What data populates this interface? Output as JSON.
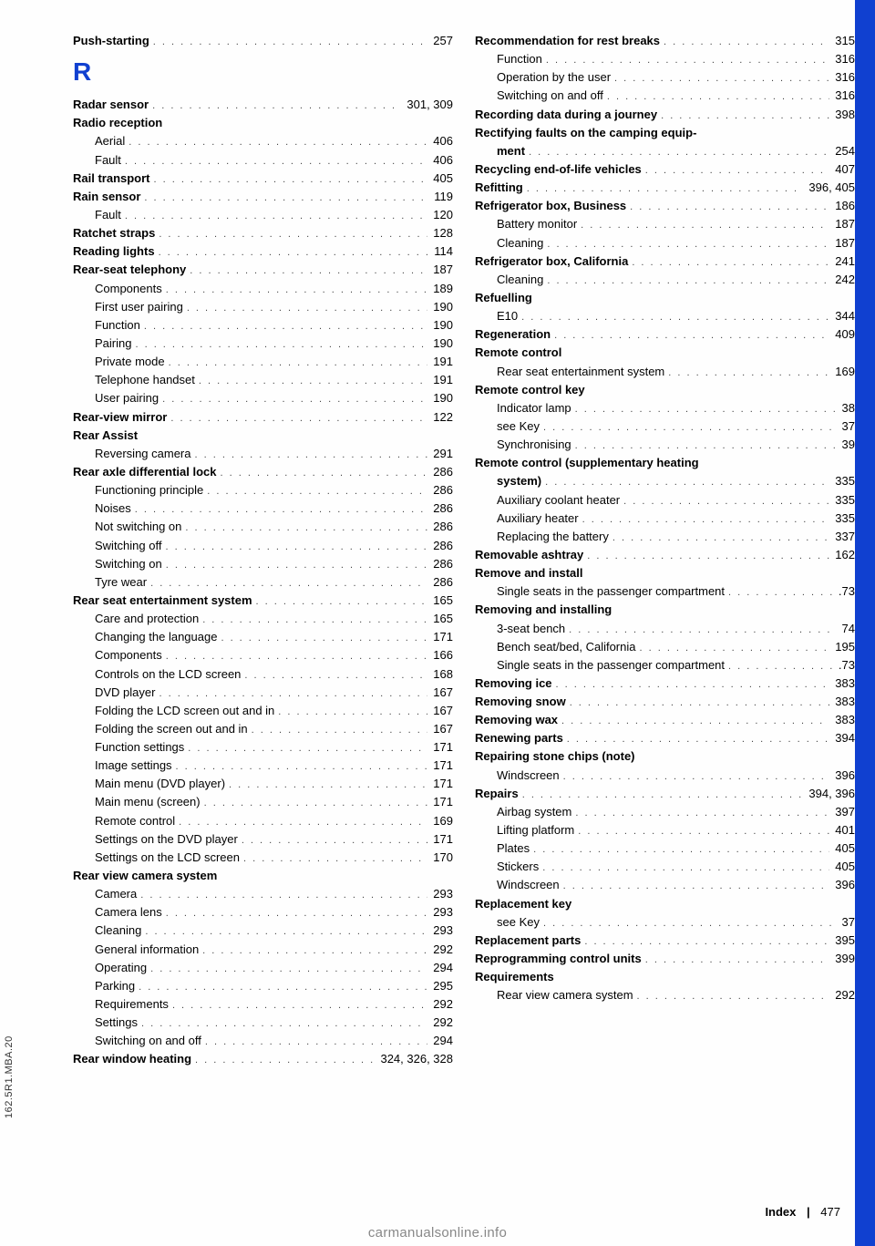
{
  "colors": {
    "accent": "#1040d0",
    "tab": "#1040d0",
    "text": "#000",
    "bg": "#fefefe"
  },
  "typography": {
    "body_pt": 13,
    "letter_pt": 28,
    "font": "Arial"
  },
  "spine": "162.5R1.MBA.20",
  "footer": {
    "label": "Index",
    "page": "477"
  },
  "watermark": "carmanualsonline.info",
  "section_letter": "R",
  "left": [
    {
      "t": "Push-starting",
      "p": "257",
      "b": true
    },
    {
      "letter": "R"
    },
    {
      "t": "Radar sensor",
      "p": "301, 309",
      "b": true
    },
    {
      "t": "Radio reception",
      "b": true,
      "nopage": true
    },
    {
      "t": "Aerial",
      "p": "406",
      "sub": true
    },
    {
      "t": "Fault",
      "p": "406",
      "sub": true
    },
    {
      "t": "Rail transport",
      "p": "405",
      "b": true
    },
    {
      "t": "Rain sensor",
      "p": "119",
      "b": true
    },
    {
      "t": "Fault",
      "p": "120",
      "sub": true
    },
    {
      "t": "Ratchet straps",
      "p": "128",
      "b": true
    },
    {
      "t": "Reading lights",
      "p": "114",
      "b": true
    },
    {
      "t": "Rear-seat telephony",
      "p": "187",
      "b": true
    },
    {
      "t": "Components",
      "p": "189",
      "sub": true
    },
    {
      "t": "First user pairing",
      "p": "190",
      "sub": true
    },
    {
      "t": "Function",
      "p": "190",
      "sub": true
    },
    {
      "t": "Pairing",
      "p": "190",
      "sub": true
    },
    {
      "t": "Private mode",
      "p": "191",
      "sub": true
    },
    {
      "t": "Telephone handset",
      "p": "191",
      "sub": true
    },
    {
      "t": "User pairing",
      "p": "190",
      "sub": true
    },
    {
      "t": "Rear-view mirror",
      "p": "122",
      "b": true
    },
    {
      "t": "Rear Assist",
      "b": true,
      "nopage": true
    },
    {
      "t": "Reversing camera",
      "p": "291",
      "sub": true
    },
    {
      "t": "Rear axle differential lock",
      "p": "286",
      "b": true
    },
    {
      "t": "Functioning principle",
      "p": "286",
      "sub": true
    },
    {
      "t": "Noises",
      "p": "286",
      "sub": true
    },
    {
      "t": "Not switching on",
      "p": "286",
      "sub": true
    },
    {
      "t": "Switching off",
      "p": "286",
      "sub": true
    },
    {
      "t": "Switching on",
      "p": "286",
      "sub": true
    },
    {
      "t": "Tyre wear",
      "p": "286",
      "sub": true
    },
    {
      "t": "Rear seat entertainment system",
      "p": "165",
      "b": true
    },
    {
      "t": "Care and protection",
      "p": "165",
      "sub": true
    },
    {
      "t": "Changing the language",
      "p": "171",
      "sub": true
    },
    {
      "t": "Components",
      "p": "166",
      "sub": true
    },
    {
      "t": "Controls on the LCD screen",
      "p": "168",
      "sub": true
    },
    {
      "t": "DVD player",
      "p": "167",
      "sub": true
    },
    {
      "t": "Folding the LCD screen out and in",
      "p": "167",
      "sub": true
    },
    {
      "t": "Folding the screen out and in",
      "p": "167",
      "sub": true
    },
    {
      "t": "Function settings",
      "p": "171",
      "sub": true
    },
    {
      "t": "Image settings",
      "p": "171",
      "sub": true
    },
    {
      "t": "Main menu (DVD player)",
      "p": "171",
      "sub": true
    },
    {
      "t": "Main menu (screen)",
      "p": "171",
      "sub": true
    },
    {
      "t": "Remote control",
      "p": "169",
      "sub": true
    },
    {
      "t": "Settings on the DVD player",
      "p": "171",
      "sub": true
    },
    {
      "t": "Settings on the LCD screen",
      "p": "170",
      "sub": true
    },
    {
      "t": "Rear view camera system",
      "b": true,
      "nopage": true
    },
    {
      "t": "Camera",
      "p": "293",
      "sub": true
    },
    {
      "t": "Camera lens",
      "p": "293",
      "sub": true
    },
    {
      "t": "Cleaning",
      "p": "293",
      "sub": true
    },
    {
      "t": "General information",
      "p": "292",
      "sub": true
    },
    {
      "t": "Operating",
      "p": "294",
      "sub": true
    },
    {
      "t": "Parking",
      "p": "295",
      "sub": true
    },
    {
      "t": "Requirements",
      "p": "292",
      "sub": true
    },
    {
      "t": "Settings",
      "p": "292",
      "sub": true
    },
    {
      "t": "Switching on and off",
      "p": "294",
      "sub": true
    },
    {
      "t": "Rear window heating",
      "p": "324, 326, 328",
      "b": true
    }
  ],
  "right": [
    {
      "t": "Recommendation for rest breaks",
      "p": "315",
      "b": true
    },
    {
      "t": "Function",
      "p": "316",
      "sub": true
    },
    {
      "t": "Operation by the user",
      "p": "316",
      "sub": true
    },
    {
      "t": "Switching on and off",
      "p": "316",
      "sub": true
    },
    {
      "t": "Recording data during a journey",
      "p": "398",
      "b": true
    },
    {
      "t": "Rectifying faults on the camping equip-",
      "b": true,
      "nopage": true
    },
    {
      "t": "ment",
      "p": "254",
      "b": true,
      "cont": true
    },
    {
      "t": "Recycling end-of-life vehicles",
      "p": "407",
      "b": true
    },
    {
      "t": "Refitting",
      "p": "396, 405",
      "b": true
    },
    {
      "t": "Refrigerator box, Business",
      "p": "186",
      "b": true
    },
    {
      "t": "Battery monitor",
      "p": "187",
      "sub": true
    },
    {
      "t": "Cleaning",
      "p": "187",
      "sub": true
    },
    {
      "t": "Refrigerator box, California",
      "p": "241",
      "b": true
    },
    {
      "t": "Cleaning",
      "p": "242",
      "sub": true
    },
    {
      "t": "Refuelling",
      "b": true,
      "nopage": true
    },
    {
      "t": "E10",
      "p": "344",
      "sub": true
    },
    {
      "t": "Regeneration",
      "p": "409",
      "b": true
    },
    {
      "t": "Remote control",
      "b": true,
      "nopage": true
    },
    {
      "t": "Rear seat entertainment system",
      "p": "169",
      "sub": true
    },
    {
      "t": "Remote control key",
      "b": true,
      "nopage": true
    },
    {
      "t": "Indicator lamp",
      "p": "38",
      "sub": true
    },
    {
      "t": "see Key",
      "p": "37",
      "sub": true
    },
    {
      "t": "Synchronising",
      "p": "39",
      "sub": true
    },
    {
      "t": "Remote control (supplementary heating",
      "b": true,
      "nopage": true
    },
    {
      "t": "system)",
      "p": "335",
      "b": true,
      "cont": true
    },
    {
      "t": "Auxiliary coolant heater",
      "p": "335",
      "sub": true
    },
    {
      "t": "Auxiliary heater",
      "p": "335",
      "sub": true
    },
    {
      "t": "Replacing the battery",
      "p": "337",
      "sub": true
    },
    {
      "t": "Removable ashtray",
      "p": "162",
      "b": true
    },
    {
      "t": "Remove and install",
      "b": true,
      "nopage": true
    },
    {
      "t": "Single seats in the passenger compartment",
      "p": ".73",
      "sub": true
    },
    {
      "t": "Removing and installing",
      "b": true,
      "nopage": true
    },
    {
      "t": "3-seat bench",
      "p": "74",
      "sub": true
    },
    {
      "t": "Bench seat/bed, California",
      "p": "195",
      "sub": true
    },
    {
      "t": "Single seats in the passenger compartment",
      "p": ".73",
      "sub": true
    },
    {
      "t": "Removing ice",
      "p": "383",
      "b": true
    },
    {
      "t": "Removing snow",
      "p": "383",
      "b": true
    },
    {
      "t": "Removing wax",
      "p": "383",
      "b": true
    },
    {
      "t": "Renewing parts",
      "p": "394",
      "b": true
    },
    {
      "t": "Repairing stone chips (note)",
      "b": true,
      "nopage": true
    },
    {
      "t": "Windscreen",
      "p": "396",
      "sub": true
    },
    {
      "t": "Repairs",
      "p": "394, 396",
      "b": true
    },
    {
      "t": "Airbag system",
      "p": "397",
      "sub": true
    },
    {
      "t": "Lifting platform",
      "p": "401",
      "sub": true
    },
    {
      "t": "Plates",
      "p": "405",
      "sub": true
    },
    {
      "t": "Stickers",
      "p": "405",
      "sub": true
    },
    {
      "t": "Windscreen",
      "p": "396",
      "sub": true
    },
    {
      "t": "Replacement key",
      "b": true,
      "nopage": true
    },
    {
      "t": "see Key",
      "p": "37",
      "sub": true
    },
    {
      "t": "Replacement parts",
      "p": "395",
      "b": true
    },
    {
      "t": "Reprogramming control units",
      "p": "399",
      "b": true
    },
    {
      "t": "Requirements",
      "b": true,
      "nopage": true
    },
    {
      "t": "Rear view camera system",
      "p": "292",
      "sub": true
    }
  ]
}
